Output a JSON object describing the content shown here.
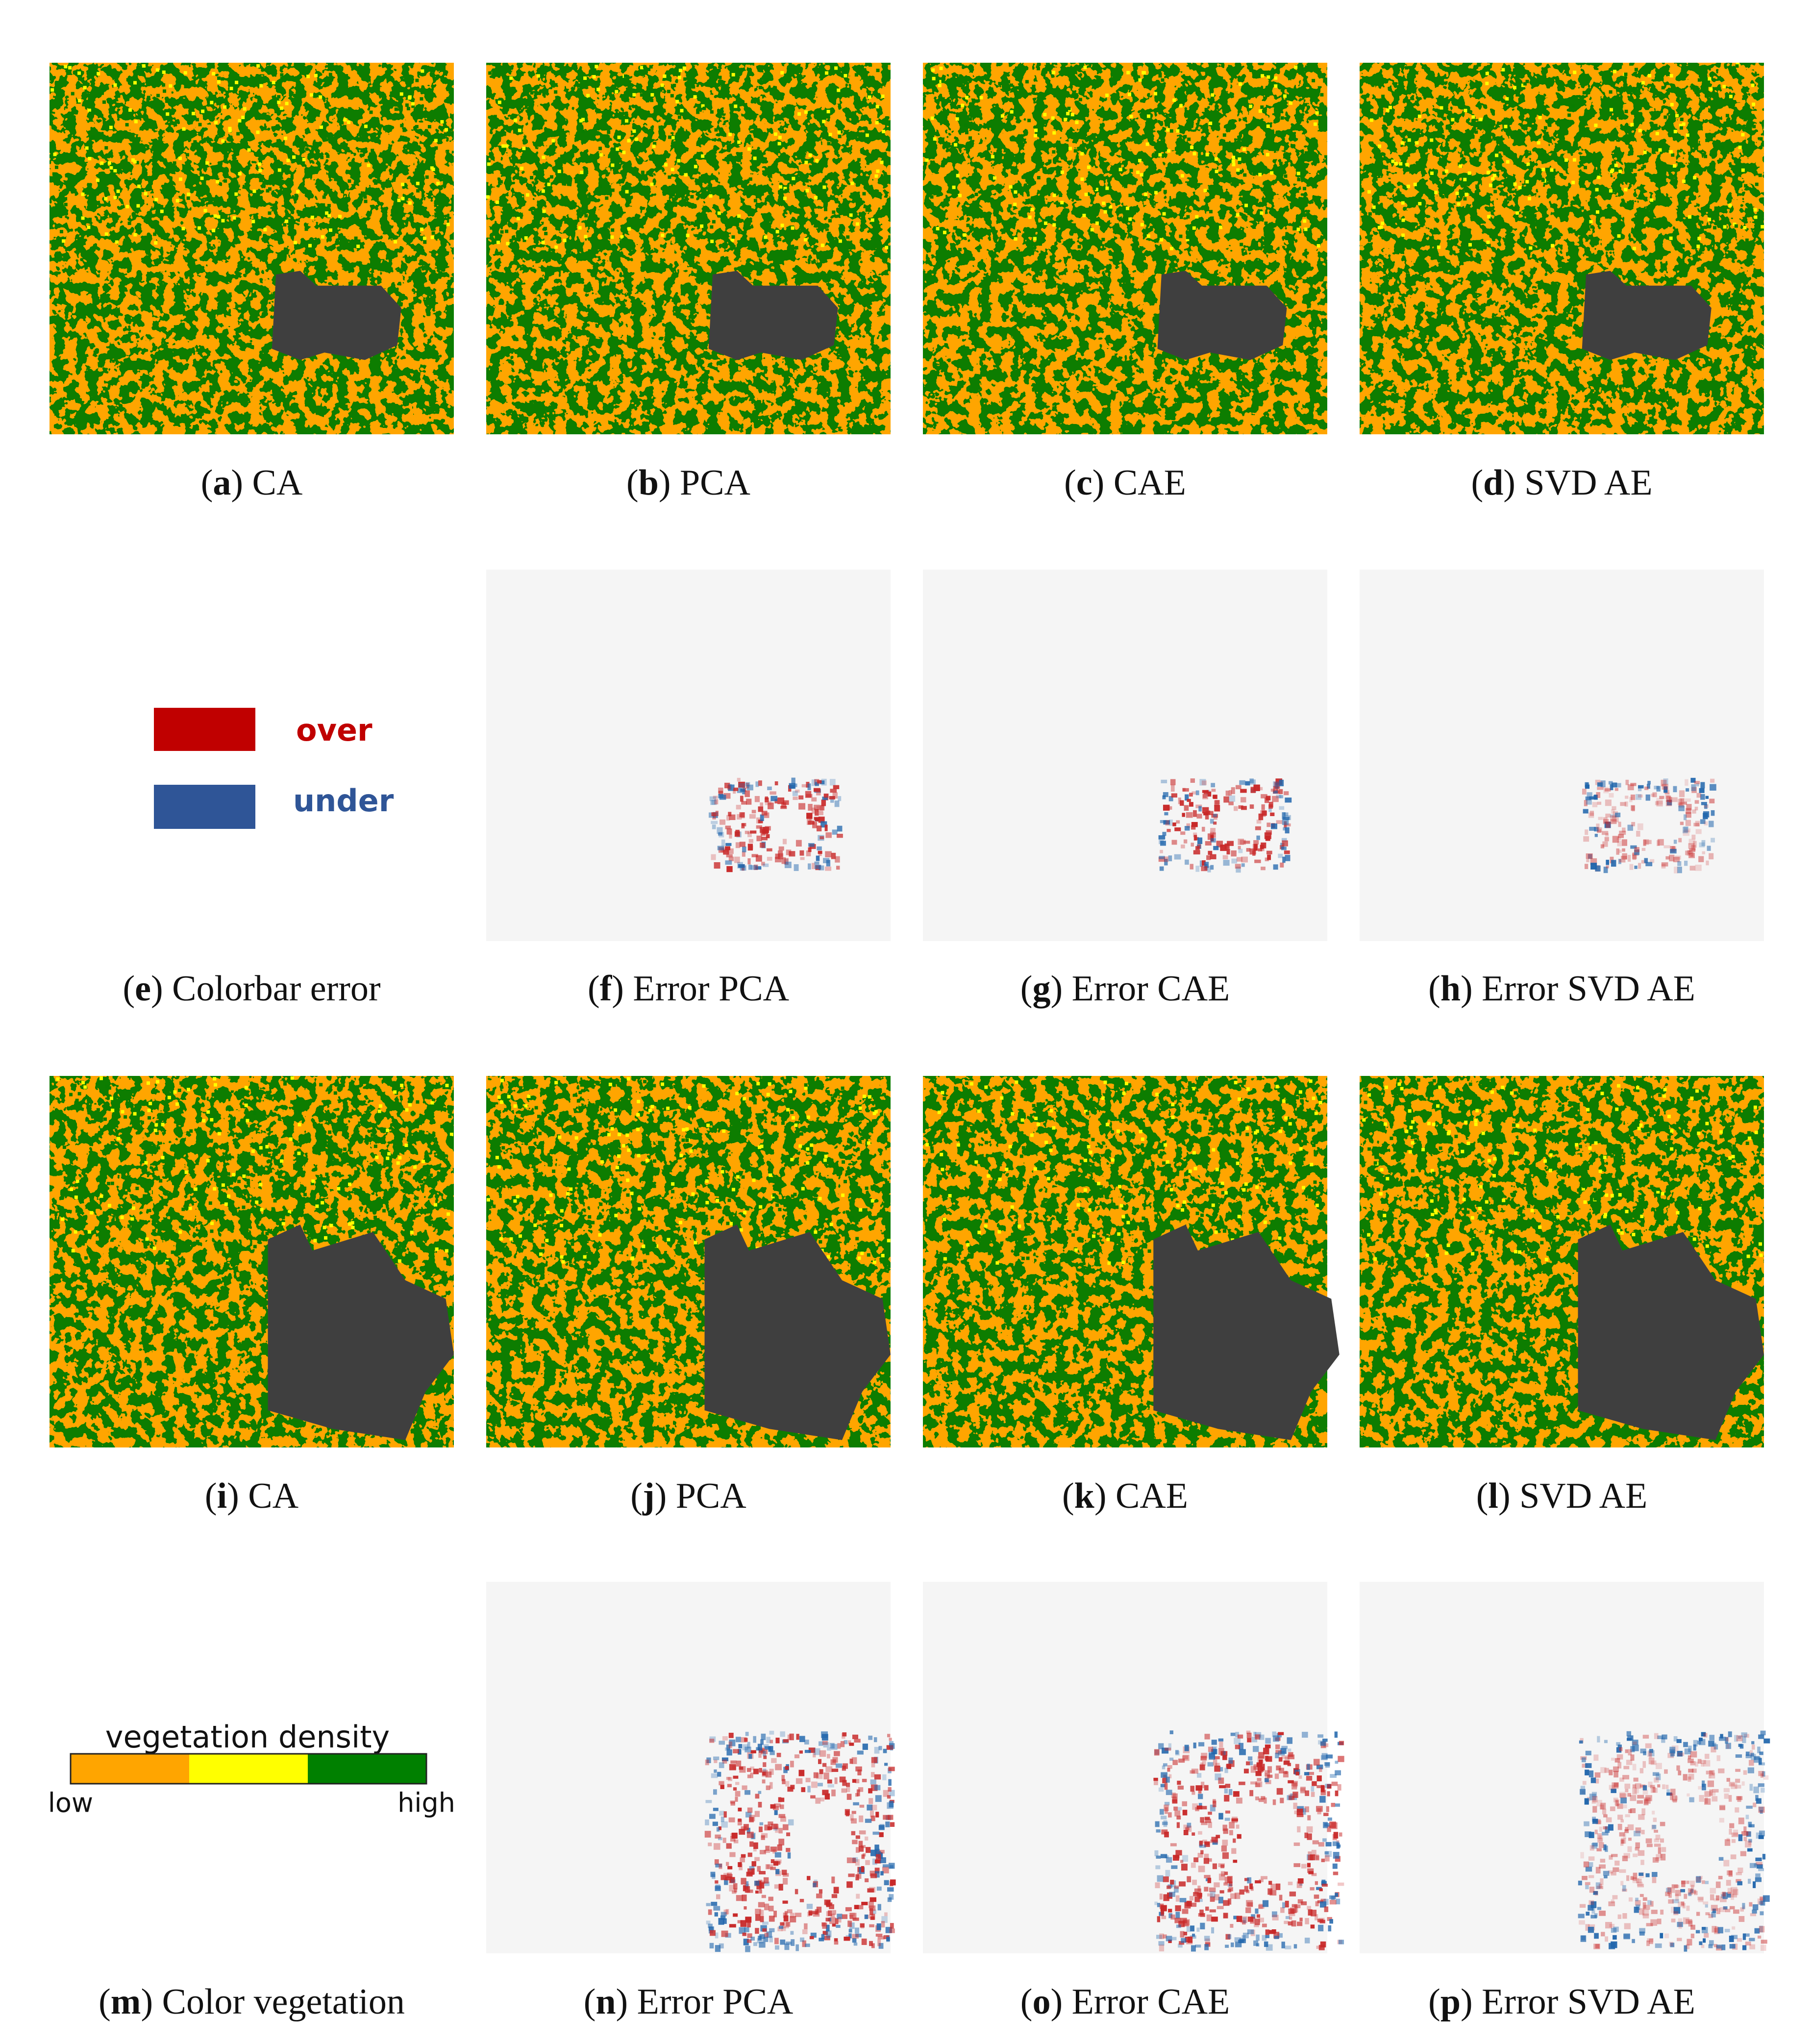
{
  "panels": [
    {
      "caption": [
        "(",
        "a",
        ") CA"
      ]
    },
    {
      "caption": [
        "(",
        "b",
        ") PCA"
      ]
    },
    {
      "caption": [
        "(",
        "c",
        ") CAE"
      ]
    },
    {
      "caption": [
        "(",
        "d",
        ") SVD AE"
      ]
    },
    {
      "caption": [
        "(",
        "e",
        ") Colorbar error"
      ]
    },
    {
      "caption": [
        "(",
        "f",
        ") Error PCA"
      ]
    },
    {
      "caption": [
        "(",
        "g",
        ") Error CAE"
      ]
    },
    {
      "caption": [
        "(",
        "h",
        ") Error SVD AE"
      ]
    },
    {
      "caption": [
        "(",
        "i",
        ") CA"
      ]
    },
    {
      "caption": [
        "(",
        "j",
        ") PCA"
      ]
    },
    {
      "caption": [
        "(",
        "k",
        ") CAE"
      ]
    },
    {
      "caption": [
        "(",
        "l",
        ") SVD AE"
      ]
    },
    {
      "caption": [
        "(",
        "m",
        ") Color vegetation"
      ]
    },
    {
      "caption": [
        "(",
        "n",
        ") Error PCA"
      ]
    },
    {
      "caption": [
        "(",
        "o",
        ") Error CAE"
      ]
    },
    {
      "caption": [
        "(",
        "p",
        ") Error SVD AE"
      ]
    }
  ],
  "error_legend": {
    "over": "over",
    "under": "under"
  },
  "vegetation_legend": {
    "title": "vegetation density",
    "low": "low",
    "high": "high"
  }
}
